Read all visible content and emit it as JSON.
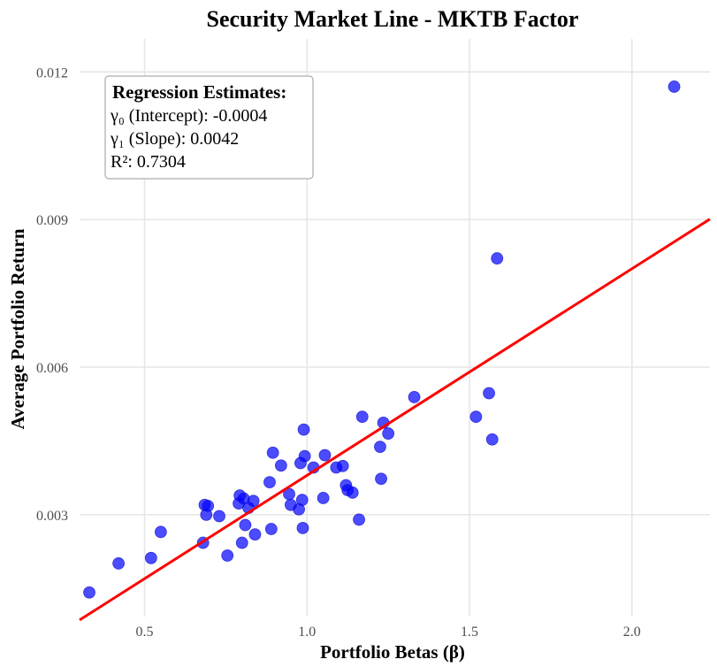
{
  "chart_data": {
    "type": "scatter",
    "title": "Security Market Line - MKTB Factor",
    "xlabel": "Portfolio Betas (β)",
    "ylabel": "Average Portfolio Return",
    "xlim": [
      0.3,
      2.24
    ],
    "ylim": [
      0.00093,
      0.01267
    ],
    "xticks": [
      0.5,
      1.0,
      1.5,
      2.0
    ],
    "xtick_labels": [
      "0.5",
      "1.0",
      "1.5",
      "2.0"
    ],
    "yticks": [
      0.003,
      0.006,
      0.009,
      0.012
    ],
    "ytick_labels": [
      "0.003",
      "0.006",
      "0.009",
      "0.012"
    ],
    "grid": true,
    "point_color": "#0000ff",
    "line_color": "#ff0000",
    "regression_line": {
      "intercept": -0.0004,
      "slope": 0.0042
    },
    "annotation": {
      "heading": "Regression Estimates:",
      "lines": [
        "γ₀ (Intercept): -0.0004",
        "γ₁ (Slope): 0.0042",
        "R²: 0.7304"
      ]
    },
    "points": [
      {
        "x": 0.33,
        "y": 0.00142
      },
      {
        "x": 0.42,
        "y": 0.00201
      },
      {
        "x": 0.52,
        "y": 0.00212
      },
      {
        "x": 0.55,
        "y": 0.00265
      },
      {
        "x": 0.68,
        "y": 0.00243
      },
      {
        "x": 0.685,
        "y": 0.0032
      },
      {
        "x": 0.69,
        "y": 0.003
      },
      {
        "x": 0.695,
        "y": 0.00318
      },
      {
        "x": 0.73,
        "y": 0.00297
      },
      {
        "x": 0.755,
        "y": 0.00217
      },
      {
        "x": 0.79,
        "y": 0.00323
      },
      {
        "x": 0.793,
        "y": 0.00339
      },
      {
        "x": 0.8,
        "y": 0.00243
      },
      {
        "x": 0.805,
        "y": 0.00333
      },
      {
        "x": 0.81,
        "y": 0.00279
      },
      {
        "x": 0.82,
        "y": 0.00314
      },
      {
        "x": 0.835,
        "y": 0.00328
      },
      {
        "x": 0.84,
        "y": 0.0026
      },
      {
        "x": 0.885,
        "y": 0.00366
      },
      {
        "x": 0.89,
        "y": 0.00271
      },
      {
        "x": 0.895,
        "y": 0.00426
      },
      {
        "x": 0.92,
        "y": 0.004
      },
      {
        "x": 0.945,
        "y": 0.00342
      },
      {
        "x": 0.95,
        "y": 0.0032
      },
      {
        "x": 0.975,
        "y": 0.00311
      },
      {
        "x": 0.98,
        "y": 0.00405
      },
      {
        "x": 0.985,
        "y": 0.0033
      },
      {
        "x": 0.987,
        "y": 0.00273
      },
      {
        "x": 0.99,
        "y": 0.00473
      },
      {
        "x": 0.993,
        "y": 0.00419
      },
      {
        "x": 1.02,
        "y": 0.00396
      },
      {
        "x": 1.05,
        "y": 0.00334
      },
      {
        "x": 1.055,
        "y": 0.00421
      },
      {
        "x": 1.09,
        "y": 0.00396
      },
      {
        "x": 1.11,
        "y": 0.00399
      },
      {
        "x": 1.12,
        "y": 0.0036
      },
      {
        "x": 1.125,
        "y": 0.0035
      },
      {
        "x": 1.14,
        "y": 0.00345
      },
      {
        "x": 1.16,
        "y": 0.0029
      },
      {
        "x": 1.17,
        "y": 0.00499
      },
      {
        "x": 1.225,
        "y": 0.00438
      },
      {
        "x": 1.228,
        "y": 0.00373
      },
      {
        "x": 1.235,
        "y": 0.00487
      },
      {
        "x": 1.25,
        "y": 0.00465
      },
      {
        "x": 1.33,
        "y": 0.00539
      },
      {
        "x": 1.52,
        "y": 0.00499
      },
      {
        "x": 1.56,
        "y": 0.00547
      },
      {
        "x": 1.57,
        "y": 0.00453
      },
      {
        "x": 1.585,
        "y": 0.00821
      },
      {
        "x": 2.13,
        "y": 0.0117
      }
    ]
  }
}
